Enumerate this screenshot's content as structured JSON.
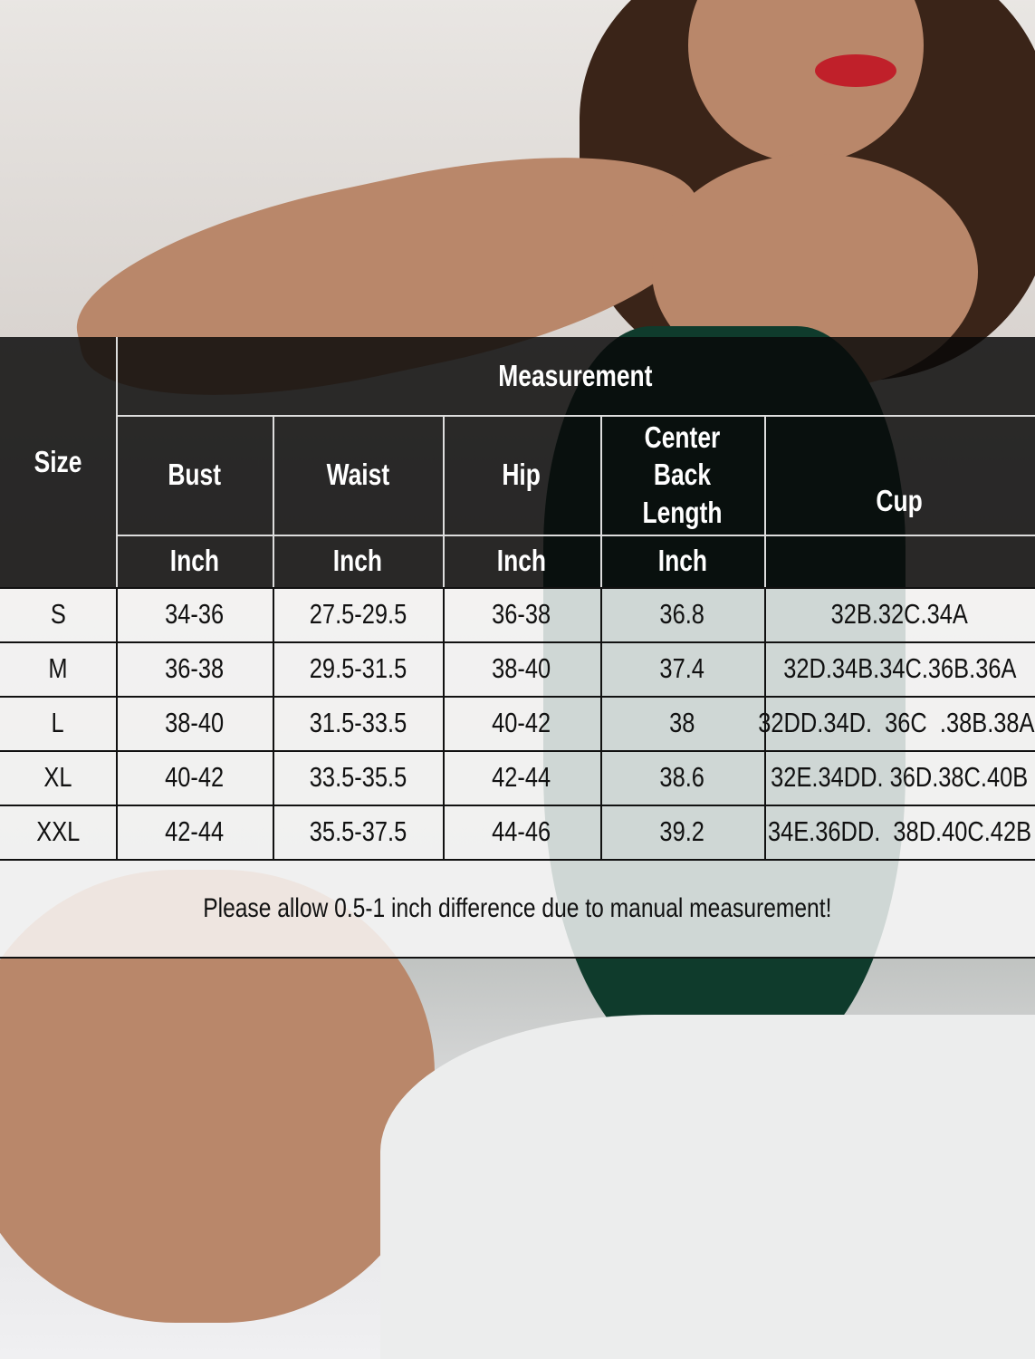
{
  "size_chart": {
    "group_header": "Measurement",
    "size_header": "Size",
    "columns": [
      "Bust",
      "Waist",
      "Hip",
      "Center Back Length",
      "Cup"
    ],
    "units": [
      "Inch",
      "Inch",
      "Inch",
      "Inch"
    ],
    "rows": [
      {
        "size": "S",
        "bust": "34-36",
        "waist": "27.5-29.5",
        "hip": "36-38",
        "length": "36.8",
        "cup": "32B.32C.34A"
      },
      {
        "size": "M",
        "bust": "36-38",
        "waist": "29.5-31.5",
        "hip": "38-40",
        "length": "37.4",
        "cup": "32D.34B.34C.36B.36A"
      },
      {
        "size": "L",
        "bust": "38-40",
        "waist": "31.5-33.5",
        "hip": "40-42",
        "length": "38",
        "cup": "32DD.34D.  36C  .38B.38A."
      },
      {
        "size": "XL",
        "bust": "40-42",
        "waist": "33.5-35.5",
        "hip": "42-44",
        "length": "38.6",
        "cup": "32E.34DD. 36D.38C.40B"
      },
      {
        "size": "XXL",
        "bust": "42-44",
        "waist": "35.5-37.5",
        "hip": "44-46",
        "length": "39.2",
        "cup": "34E.36DD.  38D.40C.42B"
      }
    ],
    "note": "Please allow 0.5-1 inch difference due to manual measurement!"
  },
  "colors": {
    "header_bg": "#0a0a0a",
    "garment": "#0f3b2c",
    "lips": "#c0202a"
  }
}
